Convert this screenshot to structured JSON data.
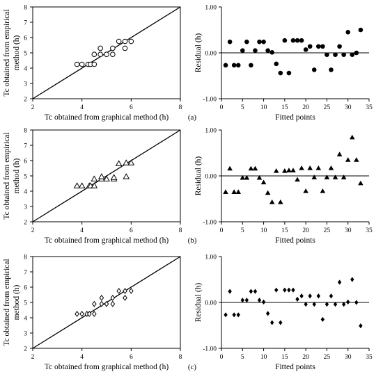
{
  "figure": {
    "panel_labels": [
      "(a)",
      "(b)",
      "(c)"
    ]
  },
  "chart_data": [
    {
      "type": "scatter",
      "panel": "a",
      "marker": "open-circle",
      "marker_color": "#000000",
      "xlabel": "Tc obtained from graphical method (h)",
      "ylabel": "Tc obtained from empirical method (h)",
      "xlim": [
        2,
        8
      ],
      "ylim": [
        2,
        8
      ],
      "xticks": [
        2,
        4,
        6,
        8
      ],
      "yticks": [
        2,
        3,
        4,
        5,
        6,
        7,
        8
      ],
      "reference_line": "1:1",
      "points": [
        [
          3.8,
          4.25
        ],
        [
          4.0,
          4.25
        ],
        [
          4.25,
          4.25
        ],
        [
          4.35,
          4.25
        ],
        [
          4.5,
          4.25
        ],
        [
          4.5,
          4.9
        ],
        [
          4.75,
          4.9
        ],
        [
          4.75,
          5.3
        ],
        [
          5.0,
          4.9
        ],
        [
          5.25,
          4.9
        ],
        [
          5.25,
          5.3
        ],
        [
          5.5,
          5.75
        ],
        [
          5.75,
          5.3
        ],
        [
          5.75,
          5.75
        ],
        [
          6.0,
          5.75
        ]
      ]
    },
    {
      "type": "scatter",
      "panel": "a",
      "marker": "filled-circle",
      "marker_color": "#000000",
      "xlabel": "Fitted points",
      "ylabel": "Residual (h)",
      "xlim": [
        0,
        35
      ],
      "ylim": [
        -1.0,
        1.0
      ],
      "xticks": [
        0,
        5,
        10,
        15,
        20,
        25,
        30,
        35
      ],
      "yticks": [
        "-1.00",
        "0.00",
        "1.00"
      ],
      "zero_line": true,
      "x": [
        1,
        2,
        3,
        4,
        5,
        6,
        7,
        8,
        9,
        10,
        11,
        12,
        13,
        14,
        15,
        16,
        17,
        18,
        19,
        20,
        21,
        22,
        23,
        24,
        25,
        26,
        27,
        28,
        29,
        30,
        31,
        32,
        33
      ],
      "y": [
        -0.27,
        0.24,
        -0.27,
        -0.27,
        0.05,
        0.24,
        -0.27,
        0.05,
        0.24,
        0.24,
        0.05,
        0.01,
        -0.24,
        -0.44,
        0.27,
        -0.44,
        0.27,
        0.27,
        0.27,
        0.07,
        0.14,
        -0.37,
        0.14,
        0.14,
        -0.04,
        -0.37,
        -0.04,
        0.14,
        -0.04,
        0.45,
        -0.04,
        0.0,
        0.5
      ]
    },
    {
      "type": "scatter",
      "panel": "b",
      "marker": "open-triangle",
      "marker_color": "#000000",
      "xlabel": "Tc obtained from graphical method (h)",
      "ylabel": "Tc obtained from empirical method (h)",
      "xlim": [
        2,
        8
      ],
      "ylim": [
        2,
        8
      ],
      "xticks": [
        2,
        4,
        6,
        8
      ],
      "yticks": [
        2,
        3,
        4,
        5,
        6,
        7,
        8
      ],
      "reference_line": "1:1",
      "points": [
        [
          3.8,
          4.35
        ],
        [
          4.0,
          4.35
        ],
        [
          4.3,
          4.35
        ],
        [
          4.35,
          4.35
        ],
        [
          4.5,
          4.35
        ],
        [
          4.5,
          4.8
        ],
        [
          4.8,
          4.8
        ],
        [
          4.8,
          4.95
        ],
        [
          5.0,
          4.8
        ],
        [
          5.3,
          4.8
        ],
        [
          5.3,
          4.9
        ],
        [
          5.5,
          5.8
        ],
        [
          5.8,
          4.95
        ],
        [
          5.8,
          5.85
        ],
        [
          6.0,
          5.85
        ]
      ]
    },
    {
      "type": "scatter",
      "panel": "b",
      "marker": "filled-triangle",
      "marker_color": "#000000",
      "xlabel": "Fitted points",
      "ylabel": "Residual (h)",
      "xlim": [
        0,
        35
      ],
      "ylim": [
        -1.0,
        1.0
      ],
      "xticks": [
        0,
        5,
        10,
        15,
        20,
        25,
        30,
        35
      ],
      "yticks": [
        "-1.00",
        "0.00",
        "1.00"
      ],
      "zero_line": true,
      "x": [
        1,
        2,
        3,
        4,
        5,
        6,
        7,
        8,
        9,
        10,
        11,
        12,
        13,
        14,
        15,
        16,
        17,
        18,
        19,
        20,
        21,
        22,
        23,
        24,
        25,
        26,
        27,
        28,
        29,
        30,
        31,
        32,
        33
      ],
      "y": [
        -0.35,
        0.16,
        -0.35,
        -0.35,
        -0.04,
        -0.04,
        0.16,
        0.16,
        -0.04,
        -0.14,
        -0.37,
        -0.57,
        0.11,
        -0.57,
        0.11,
        0.12,
        0.12,
        -0.08,
        0.17,
        -0.33,
        0.17,
        -0.03,
        0.17,
        -0.33,
        -0.03,
        0.17,
        -0.03,
        0.47,
        -0.03,
        0.35,
        0.84,
        0.35,
        -0.16
      ]
    },
    {
      "type": "scatter",
      "panel": "c",
      "marker": "open-diamond",
      "marker_color": "#000000",
      "xlabel": "Tc obtained from graphical method (h)",
      "ylabel": "Tc obtained from empirical method (h)",
      "xlim": [
        2,
        8
      ],
      "ylim": [
        2,
        8
      ],
      "xticks": [
        2,
        4,
        6,
        8
      ],
      "yticks": [
        2,
        3,
        4,
        5,
        6,
        7,
        8
      ],
      "reference_line": "1:1",
      "points": [
        [
          3.8,
          4.25
        ],
        [
          4.0,
          4.25
        ],
        [
          4.2,
          4.25
        ],
        [
          4.3,
          4.25
        ],
        [
          4.5,
          4.25
        ],
        [
          4.5,
          4.9
        ],
        [
          4.8,
          4.9
        ],
        [
          4.8,
          5.3
        ],
        [
          5.0,
          4.9
        ],
        [
          5.25,
          4.9
        ],
        [
          5.25,
          5.3
        ],
        [
          5.5,
          5.75
        ],
        [
          5.75,
          5.3
        ],
        [
          5.75,
          5.75
        ],
        [
          6.0,
          5.75
        ]
      ]
    },
    {
      "type": "scatter",
      "panel": "c",
      "marker": "filled-diamond",
      "marker_color": "#000000",
      "xlabel": "Fitted points",
      "ylabel": "Residual (h)",
      "xlim": [
        0,
        35
      ],
      "ylim": [
        -1.0,
        1.0
      ],
      "xticks": [
        0,
        5,
        10,
        15,
        20,
        25,
        30,
        35
      ],
      "yticks": [
        "-1.00",
        "0.00",
        "1.00"
      ],
      "zero_line": true,
      "x": [
        1,
        2,
        3,
        4,
        5,
        6,
        7,
        8,
        9,
        10,
        11,
        12,
        13,
        14,
        15,
        16,
        17,
        18,
        19,
        20,
        21,
        22,
        23,
        24,
        25,
        26,
        27,
        28,
        29,
        30,
        31,
        32,
        33
      ],
      "y": [
        -0.27,
        0.24,
        -0.27,
        -0.27,
        0.05,
        0.05,
        0.24,
        0.24,
        0.05,
        0.01,
        -0.24,
        -0.44,
        0.27,
        -0.44,
        0.27,
        0.27,
        0.27,
        0.07,
        0.14,
        -0.04,
        0.14,
        -0.04,
        0.14,
        -0.37,
        -0.04,
        0.14,
        -0.04,
        0.44,
        -0.04,
        0.01,
        0.5,
        0.0,
        -0.51
      ]
    }
  ]
}
